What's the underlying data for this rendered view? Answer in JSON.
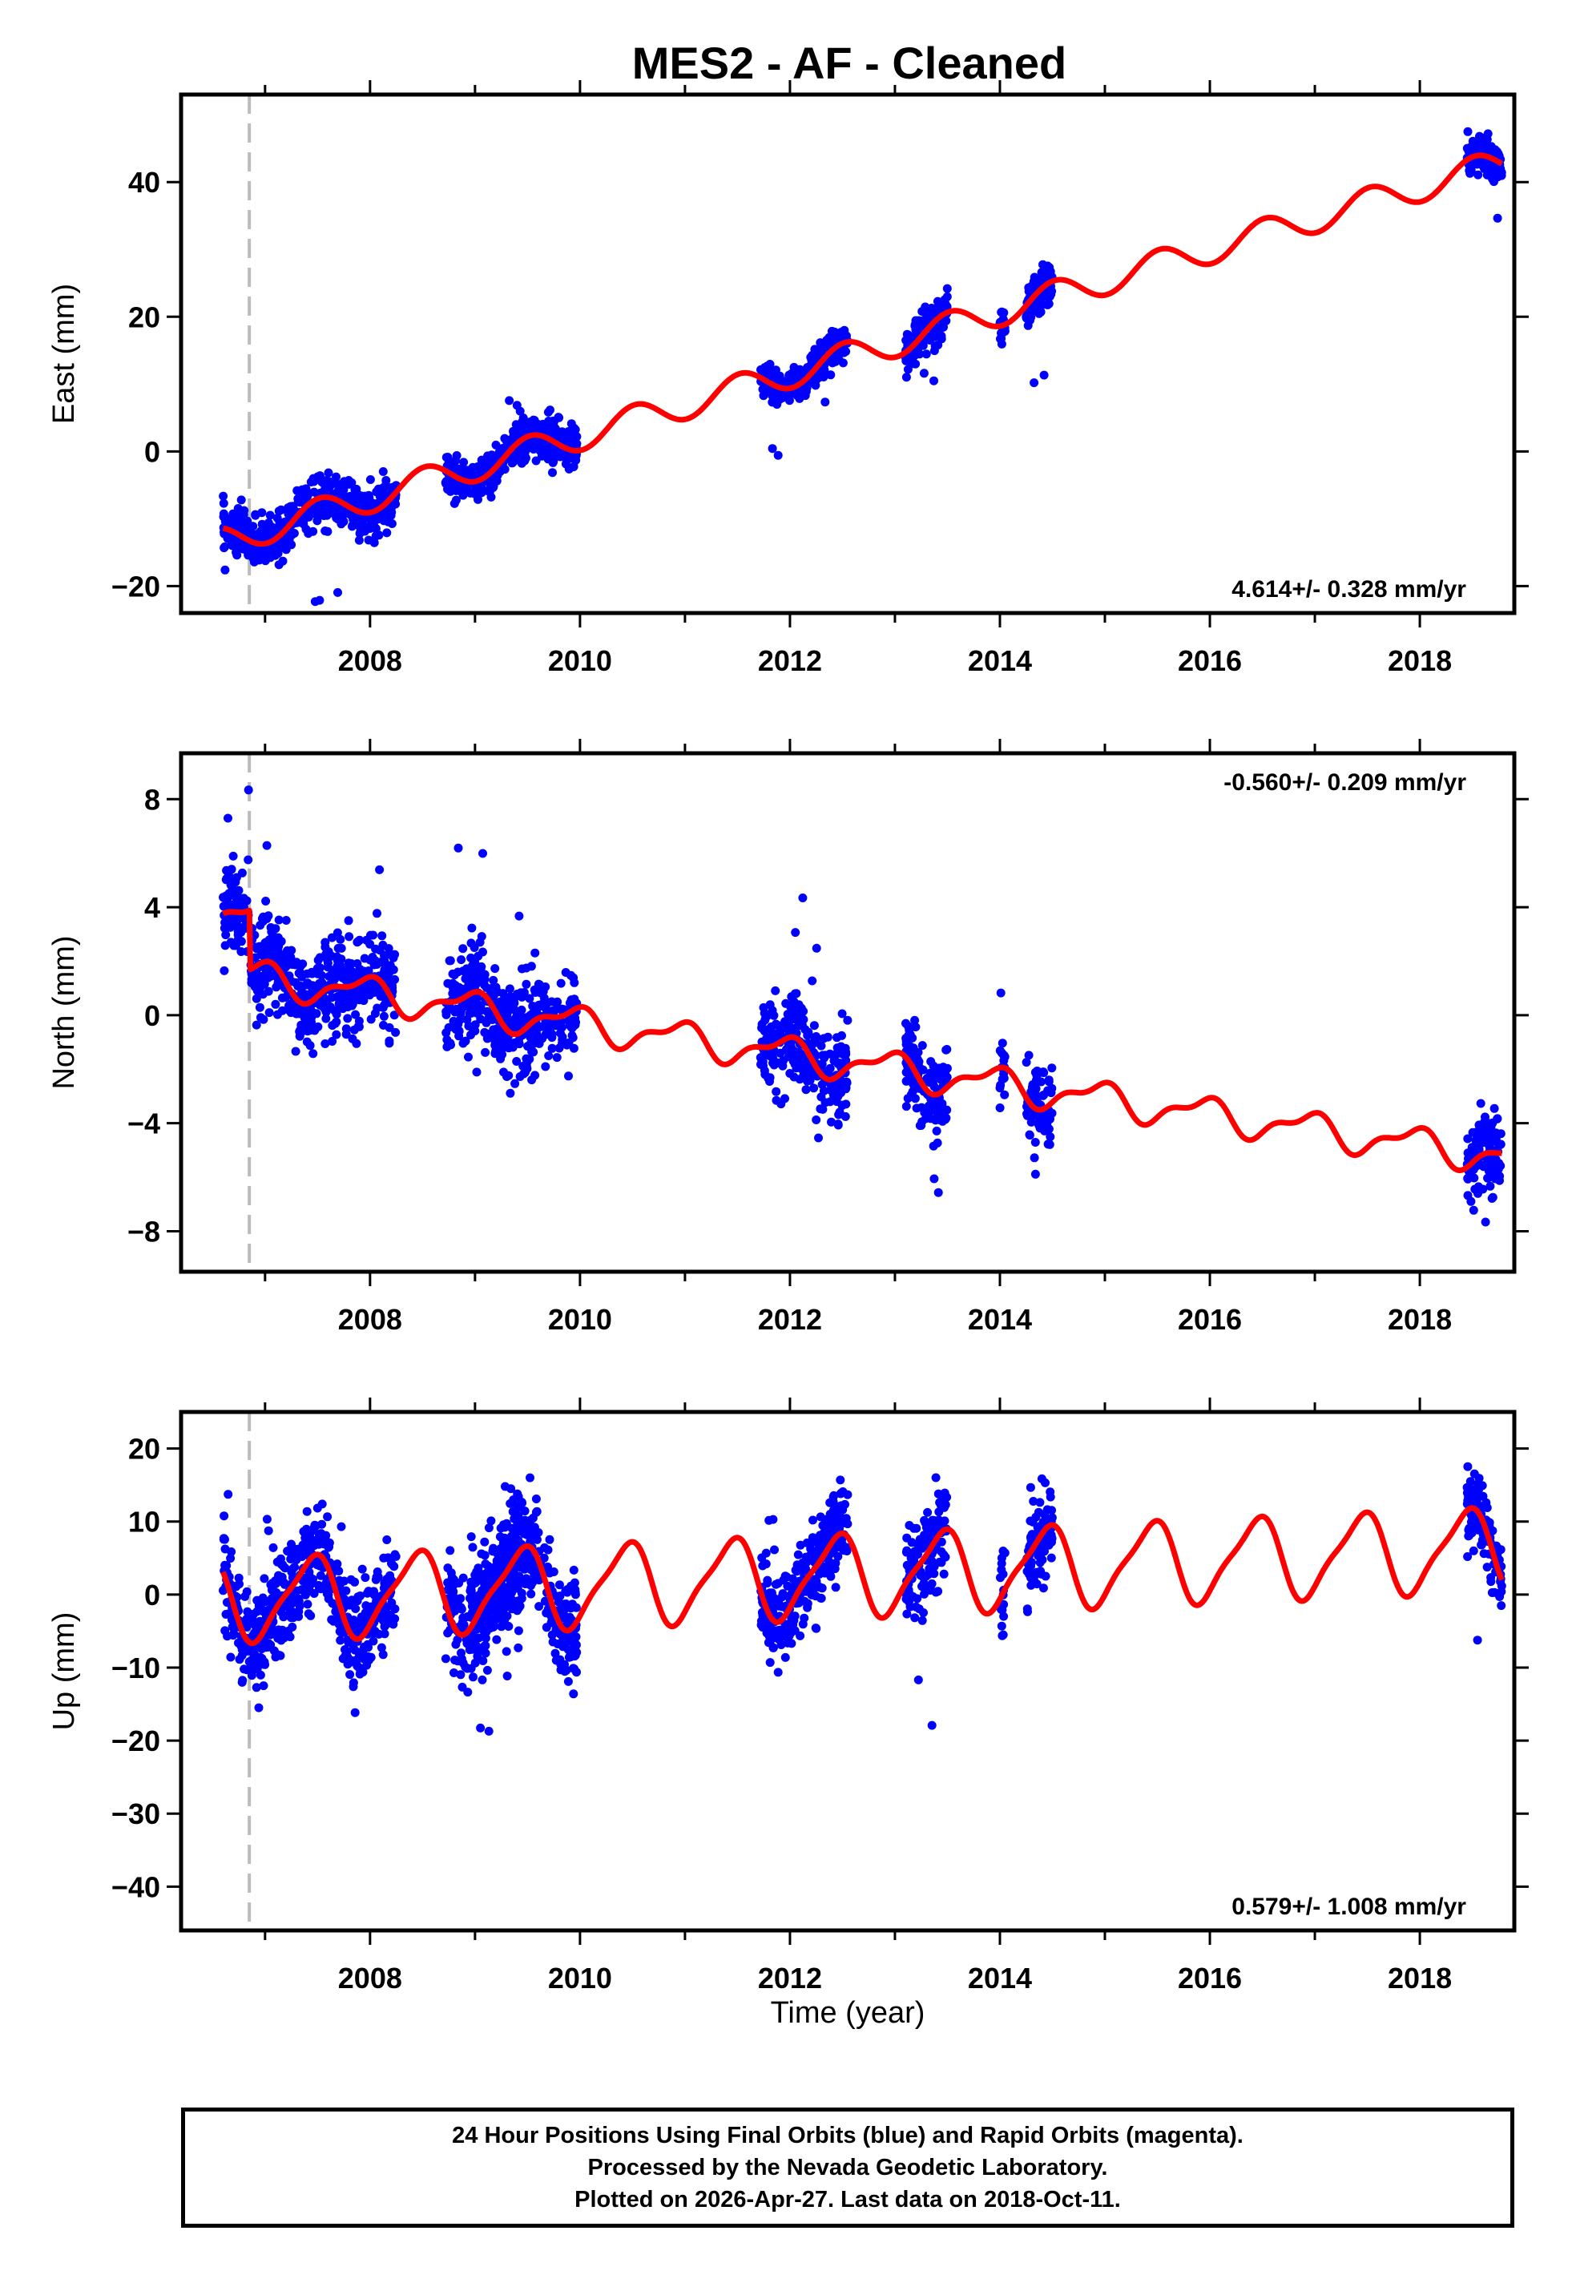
{
  "figure": {
    "title": "MES2  - AF - Cleaned",
    "xlabel": "Time (year)",
    "colors": {
      "data": "#0000ff",
      "model": "#ff0000",
      "axis": "#000000",
      "offset_line": "#bbbbbb"
    }
  },
  "chart_data": [
    {
      "type": "scatter",
      "panel": "east",
      "ylabel": "East (mm)",
      "xlim": [
        2006.2,
        2018.9
      ],
      "ylim": [
        -24,
        53
      ],
      "yticks": [
        -20,
        0,
        20,
        40
      ],
      "ytick_labels": [
        "−20",
        "0",
        "20",
        "40"
      ],
      "xticks": [
        2008,
        2010,
        2012,
        2014,
        2016,
        2018
      ],
      "xtick_labels": [
        "2008",
        "2010",
        "2012",
        "2014",
        "2016",
        "2018"
      ],
      "rate_label": "4.614+/- 0.328 mm/yr",
      "rate_position": "bottom-right",
      "offset_epoch": 2006.85,
      "model": {
        "rate": 4.614,
        "intercept_2008": -6.9,
        "amp_annual": 2.2,
        "phase_annual": -1.7,
        "amp_semi": 0.0,
        "phase_semi": 0.0,
        "step": 0.0
      },
      "segments": [
        {
          "t0": 2006.6,
          "t1": 2008.25,
          "jitter": 3.2,
          "outlier_count": 4,
          "outlier_offset": -12
        },
        {
          "t0": 2008.72,
          "t1": 2009.97,
          "jitter": 3.0,
          "outlier_count": 2,
          "outlier_offset": 8
        },
        {
          "t0": 2011.72,
          "t1": 2012.55,
          "jitter": 2.4,
          "outlier_count": 3,
          "outlier_offset": -8
        },
        {
          "t0": 2013.1,
          "t1": 2013.5,
          "jitter": 3.0,
          "outlier_count": 2,
          "outlier_offset": -8
        },
        {
          "t0": 2014.0,
          "t1": 2014.05,
          "jitter": 2.5,
          "outlier_count": 0,
          "outlier_offset": 0
        },
        {
          "t0": 2014.25,
          "t1": 2014.5,
          "jitter": 2.8,
          "outlier_count": 2,
          "outlier_offset": -12
        },
        {
          "t0": 2018.45,
          "t1": 2018.78,
          "jitter": 2.3,
          "outlier_count": 1,
          "outlier_offset": -7
        }
      ]
    },
    {
      "type": "scatter",
      "panel": "north",
      "ylabel": "North (mm)",
      "xlim": [
        2006.2,
        2018.9
      ],
      "ylim": [
        -9.5,
        9.7
      ],
      "yticks": [
        -8,
        -4,
        0,
        4,
        8
      ],
      "ytick_labels": [
        "−8",
        "−4",
        "0",
        "4",
        "8"
      ],
      "xticks": [
        2008,
        2010,
        2012,
        2014,
        2016,
        2018
      ],
      "xtick_labels": [
        "2008",
        "2010",
        "2012",
        "2014",
        "2016",
        "2018"
      ],
      "rate_label": "-0.560+/- 0.209 mm/yr",
      "rate_position": "top-right",
      "offset_epoch": 2006.85,
      "model": {
        "rate": -0.56,
        "intercept_2008": 0.8,
        "amp_annual": 0.55,
        "phase_annual": 2.0,
        "amp_semi": 0.25,
        "phase_semi": 0.5,
        "step": 2.2
      },
      "segments": [
        {
          "t0": 2006.6,
          "t1": 2008.25,
          "jitter": 1.5,
          "outlier_count": 4,
          "outlier_offset": 4.5
        },
        {
          "t0": 2008.72,
          "t1": 2009.97,
          "jitter": 1.6,
          "outlier_count": 3,
          "outlier_offset": 4.5
        },
        {
          "t0": 2011.72,
          "t1": 2012.55,
          "jitter": 1.5,
          "outlier_count": 3,
          "outlier_offset": 5.5
        },
        {
          "t0": 2013.1,
          "t1": 2013.5,
          "jitter": 1.5,
          "outlier_count": 2,
          "outlier_offset": -4
        },
        {
          "t0": 2014.0,
          "t1": 2014.05,
          "jitter": 1.4,
          "outlier_count": 0,
          "outlier_offset": 0
        },
        {
          "t0": 2014.25,
          "t1": 2014.5,
          "jitter": 1.3,
          "outlier_count": 0,
          "outlier_offset": 0
        },
        {
          "t0": 2018.45,
          "t1": 2018.78,
          "jitter": 1.5,
          "outlier_count": 2,
          "outlier_offset": -3.5
        }
      ]
    },
    {
      "type": "scatter",
      "panel": "up",
      "ylabel": "Up (mm)",
      "xlim": [
        2006.2,
        2018.9
      ],
      "ylim": [
        -46,
        25
      ],
      "yticks": [
        -40,
        -30,
        -20,
        -10,
        0,
        10,
        20
      ],
      "ytick_labels": [
        "−40",
        "−30",
        "−20",
        "−10",
        "0",
        "10",
        "20"
      ],
      "xticks": [
        2008,
        2010,
        2012,
        2014,
        2016,
        2018
      ],
      "xtick_labels": [
        "2008",
        "2010",
        "2012",
        "2014",
        "2016",
        "2018"
      ],
      "rate_label": "0.579+/- 1.008 mm/yr",
      "rate_position": "bottom-right",
      "offset_epoch": 2006.85,
      "model": {
        "rate": 0.579,
        "intercept_2008": 0.0,
        "amp_annual": 5.4,
        "phase_annual": -1.15,
        "amp_semi": 1.3,
        "phase_semi": 0.7,
        "step": 0.0
      },
      "segments": [
        {
          "t0": 2006.6,
          "t1": 2008.25,
          "jitter": 6.0,
          "outlier_count": 4,
          "outlier_offset": 12
        },
        {
          "t0": 2008.72,
          "t1": 2009.97,
          "jitter": 6.0,
          "outlier_count": 0,
          "outlier_offset": 0
        },
        {
          "t0": 2008.95,
          "t1": 2009.45,
          "jitter": 9.0,
          "outlier_count": 3,
          "outlier_offset": -18
        },
        {
          "t0": 2011.72,
          "t1": 2012.55,
          "jitter": 5.5,
          "outlier_count": 3,
          "outlier_offset": 12
        },
        {
          "t0": 2013.1,
          "t1": 2013.5,
          "jitter": 6.0,
          "outlier_count": 2,
          "outlier_offset": -20
        },
        {
          "t0": 2014.0,
          "t1": 2014.05,
          "jitter": 6.0,
          "outlier_count": 0,
          "outlier_offset": 0
        },
        {
          "t0": 2014.25,
          "t1": 2014.5,
          "jitter": 6.0,
          "outlier_count": 0,
          "outlier_offset": 0
        },
        {
          "t0": 2018.45,
          "t1": 2018.78,
          "jitter": 5.0,
          "outlier_count": 1,
          "outlier_offset": -16
        }
      ]
    }
  ],
  "footer": {
    "line1": "24 Hour Positions Using Final Orbits (blue) and Rapid Orbits (magenta).",
    "line2": "Processed by the Nevada Geodetic Laboratory.",
    "line3": "Plotted on 2026-Apr-27. Last data on 2018-Oct-11."
  }
}
